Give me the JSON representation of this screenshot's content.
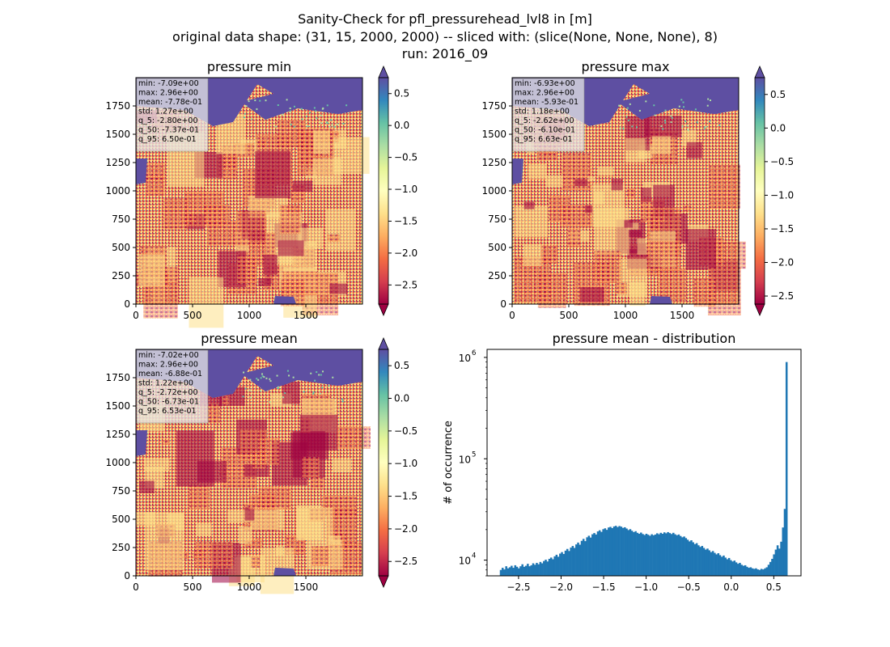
{
  "suptitle": {
    "line1": "Sanity-Check for pfl_pressurehead_lvl8 in [m]",
    "line2": "original data shape: (31, 15, 2000, 2000) -- sliced with: (slice(None, None, None), 8)",
    "line3": "run: 2016_09"
  },
  "colors": {
    "bar": "#1f77b4",
    "colormap": [
      "#9e0142",
      "#d53e4f",
      "#f46d43",
      "#fdae61",
      "#fee08b",
      "#ffffbf",
      "#e6f598",
      "#abdda4",
      "#66c2a5",
      "#3288bd",
      "#5e4fa2"
    ]
  },
  "chart_data": [
    {
      "type": "heatmap",
      "title": "pressure min",
      "colormap": "Spectral",
      "xlim": [
        0,
        2000
      ],
      "ylim": [
        0,
        2000
      ],
      "xticks": [
        "0",
        "500",
        "1000",
        "1500"
      ],
      "yticks": [
        "0",
        "250",
        "500",
        "750",
        "1000",
        "1250",
        "1500",
        "1750"
      ],
      "colorbar": {
        "range": [
          -2.8,
          0.75
        ],
        "ticks": [
          "0.5",
          "0.0",
          "−0.5",
          "−1.0",
          "−1.5",
          "−2.0",
          "−2.5"
        ],
        "tick_values": [
          0.5,
          0.0,
          -0.5,
          -1.0,
          -1.5,
          -2.0,
          -2.5
        ],
        "extend": "both"
      },
      "stats": [
        "min: -7.09e+00",
        "max: 2.96e+00",
        "mean: -7.78e-01",
        "std: 1.27e+00",
        "q_5: -2.80e+00",
        "q_50: -7.37e-01",
        "q_95: 6.50e-01"
      ]
    },
    {
      "type": "heatmap",
      "title": "pressure max",
      "colormap": "Spectral",
      "xlim": [
        0,
        2000
      ],
      "ylim": [
        0,
        2000
      ],
      "xticks": [
        "0",
        "500",
        "1000",
        "1500"
      ],
      "yticks": [
        "0",
        "250",
        "500",
        "750",
        "1000",
        "1250",
        "1500",
        "1750"
      ],
      "colorbar": {
        "range": [
          -2.62,
          0.75
        ],
        "ticks": [
          "0.5",
          "0.0",
          "−0.5",
          "−1.0",
          "−1.5",
          "−2.0",
          "−2.5"
        ],
        "tick_values": [
          0.5,
          0.0,
          -0.5,
          -1.0,
          -1.5,
          -2.0,
          -2.5
        ],
        "extend": "both"
      },
      "stats": [
        "min: -6.93e+00",
        "max: 2.96e+00",
        "mean: -5.93e-01",
        "std: 1.18e+00",
        "q_5: -2.62e+00",
        "q_50: -6.10e-01",
        "q_95: 6.63e-01"
      ]
    },
    {
      "type": "heatmap",
      "title": "pressure mean",
      "colormap": "Spectral",
      "xlim": [
        0,
        2000
      ],
      "ylim": [
        0,
        2000
      ],
      "xticks": [
        "0",
        "500",
        "1000",
        "1500"
      ],
      "yticks": [
        "0",
        "250",
        "500",
        "750",
        "1000",
        "1250",
        "1500",
        "1750"
      ],
      "colorbar": {
        "range": [
          -2.72,
          0.75
        ],
        "ticks": [
          "0.5",
          "0.0",
          "−0.5",
          "−1.0",
          "−1.5",
          "−2.0",
          "−2.5"
        ],
        "tick_values": [
          0.5,
          0.0,
          -0.5,
          -1.0,
          -1.5,
          -2.0,
          -2.5
        ],
        "extend": "both"
      },
      "stats": [
        "min: -7.02e+00",
        "max: 2.96e+00",
        "mean: -6.88e-01",
        "std: 1.22e+00",
        "q_5: -2.72e+00",
        "q_50: -6.73e-01",
        "q_95: 6.53e-01"
      ]
    },
    {
      "type": "bar",
      "title": "pressure mean - distribution",
      "xlabel": "",
      "ylabel": "# of occurrence",
      "yscale": "log",
      "xlim": [
        -2.87,
        0.82
      ],
      "ylim": [
        7000,
        1200000
      ],
      "xticks": [
        "−2.5",
        "−2.0",
        "−1.5",
        "−1.0",
        "−0.5",
        "0.0",
        "0.5"
      ],
      "xtick_values": [
        -2.5,
        -2.0,
        -1.5,
        -1.0,
        -0.5,
        0.0,
        0.5
      ],
      "yticks": [
        "10",
        "10",
        "10"
      ],
      "ytick_exponents": [
        "4",
        "5",
        "6"
      ],
      "ytick_values": [
        10000,
        100000,
        1000000
      ],
      "bin_range": [
        -2.72,
        0.66
      ],
      "bins": 160,
      "counts": [
        8000,
        8400,
        8100,
        8700,
        8300,
        8500,
        8800,
        8400,
        8900,
        8600,
        8300,
        8700,
        9100,
        8600,
        8800,
        9200,
        8700,
        8900,
        9300,
        9000,
        9400,
        9100,
        9600,
        9300,
        9800,
        10100,
        9700,
        10300,
        10600,
        10200,
        10900,
        11300,
        10800,
        11600,
        12000,
        11500,
        12400,
        12900,
        12300,
        13300,
        13800,
        13200,
        14300,
        14900,
        14200,
        15500,
        16200,
        15400,
        16800,
        17400,
        16700,
        18000,
        18500,
        17900,
        19200,
        19700,
        19000,
        20200,
        20600,
        19900,
        21000,
        21300,
        20700,
        21500,
        21800,
        21200,
        21700,
        21400,
        20800,
        21100,
        20500,
        19800,
        20200,
        19500,
        18900,
        19300,
        18600,
        18200,
        18700,
        18100,
        17700,
        18200,
        17800,
        17400,
        18000,
        17600,
        17900,
        18400,
        18000,
        18600,
        18200,
        18800,
        18400,
        18900,
        18500,
        18100,
        18600,
        18000,
        17600,
        17900,
        17300,
        16800,
        17100,
        16500,
        15900,
        15300,
        15700,
        15000,
        14400,
        14700,
        14000,
        13500,
        13800,
        13200,
        12700,
        13000,
        12500,
        12000,
        12300,
        11800,
        11400,
        11700,
        11200,
        10800,
        11100,
        10600,
        10200,
        10500,
        10000,
        9700,
        9900,
        9500,
        9200,
        9400,
        9000,
        8800,
        8900,
        8600,
        8400,
        8500,
        8300,
        8200,
        8300,
        8100,
        8000,
        8200,
        8100,
        8300,
        8500,
        9000,
        9600,
        10300,
        11400,
        12700,
        14000,
        13000,
        15200,
        21000,
        32000,
        900000
      ]
    }
  ]
}
